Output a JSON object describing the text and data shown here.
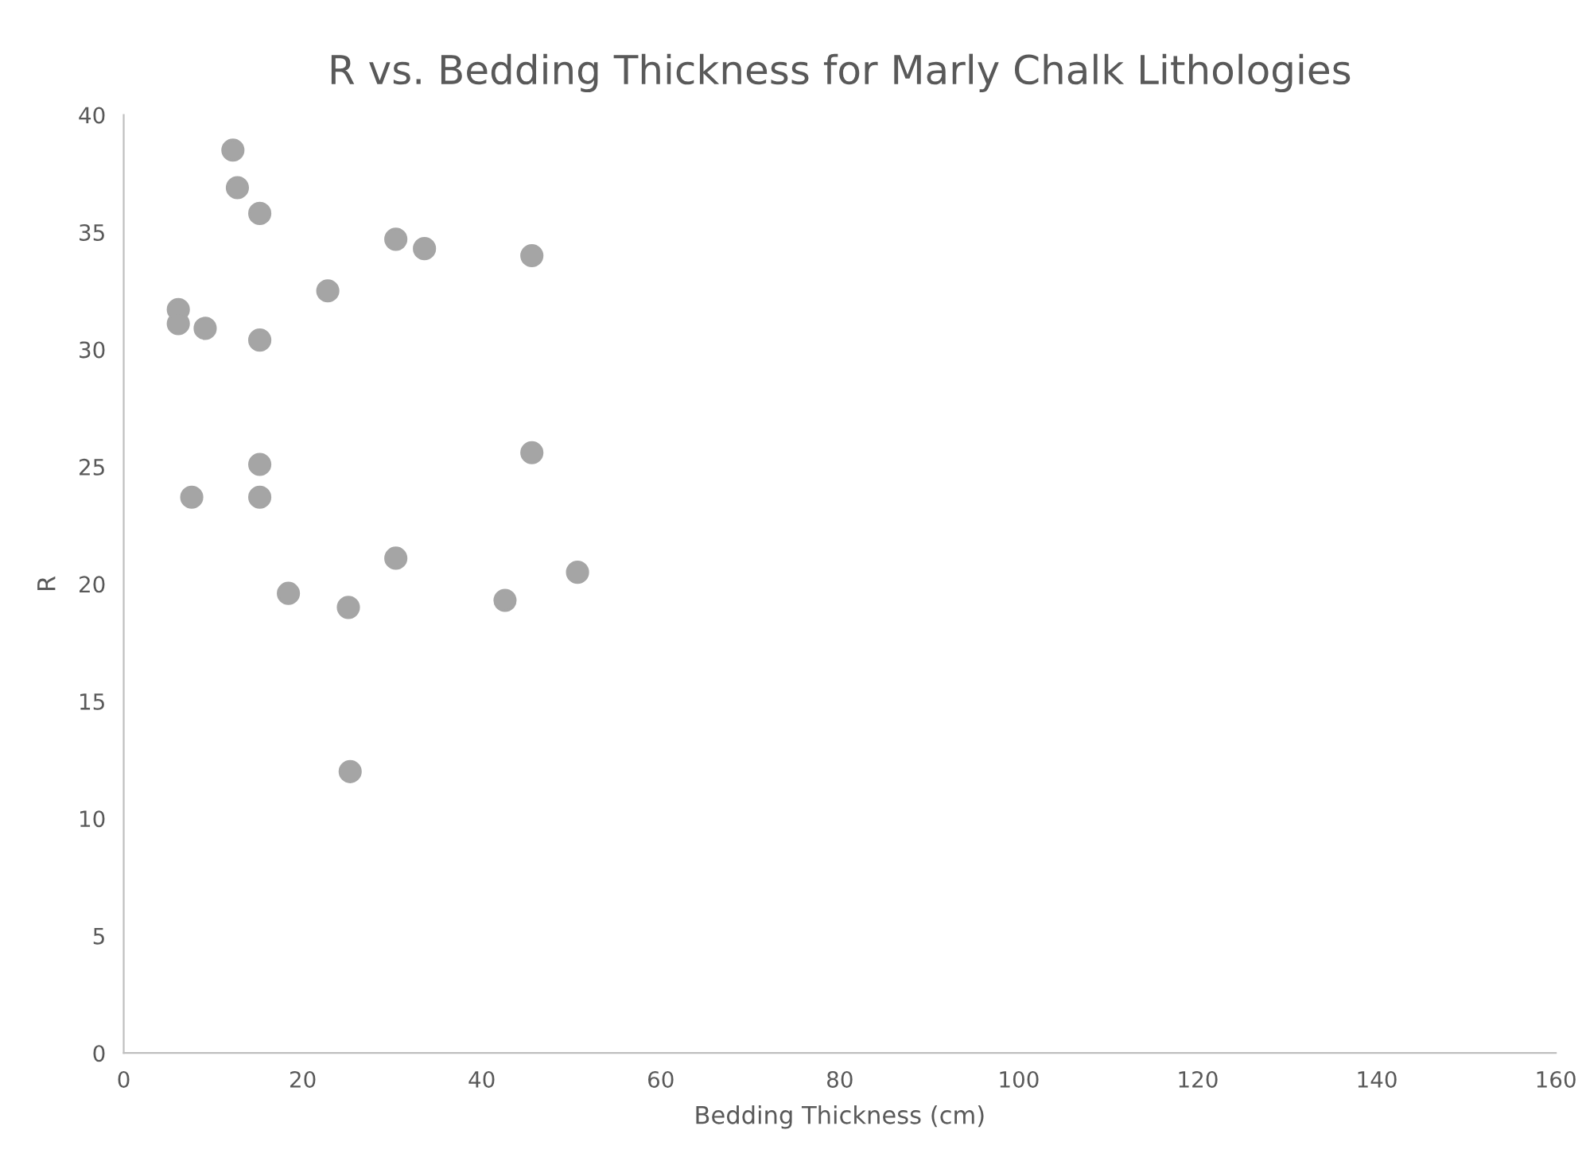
{
  "chart_data": {
    "type": "scatter",
    "title": "R vs. Bedding Thickness for Marly Chalk Lithologies",
    "xlabel": "Bedding Thickness (cm)",
    "ylabel": "R",
    "x": [
      12.2,
      12.7,
      15.2,
      30.4,
      33.6,
      45.6,
      22.8,
      6.1,
      6.1,
      9.1,
      15.2,
      15.2,
      45.6,
      7.6,
      15.2,
      30.4,
      50.7,
      18.4,
      25.1,
      42.6,
      25.3
    ],
    "series": [
      {
        "color": "#a5a5a5",
        "values": [
          38.5,
          36.9,
          35.8,
          34.7,
          34.3,
          34.0,
          32.5,
          31.7,
          31.1,
          30.9,
          30.4,
          25.1,
          25.6,
          23.7,
          23.7,
          21.1,
          20.5,
          19.6,
          19.0,
          19.3,
          12.0
        ]
      }
    ],
    "xlim": [
      0,
      160
    ],
    "xticks": [
      0,
      20,
      40,
      60,
      80,
      100,
      120,
      140,
      160
    ],
    "ylim": [
      0,
      40
    ],
    "yticks": [
      0,
      5,
      10,
      15,
      20,
      25,
      30,
      35,
      40
    ],
    "marker": "circle",
    "grid": false,
    "legend": false
  }
}
